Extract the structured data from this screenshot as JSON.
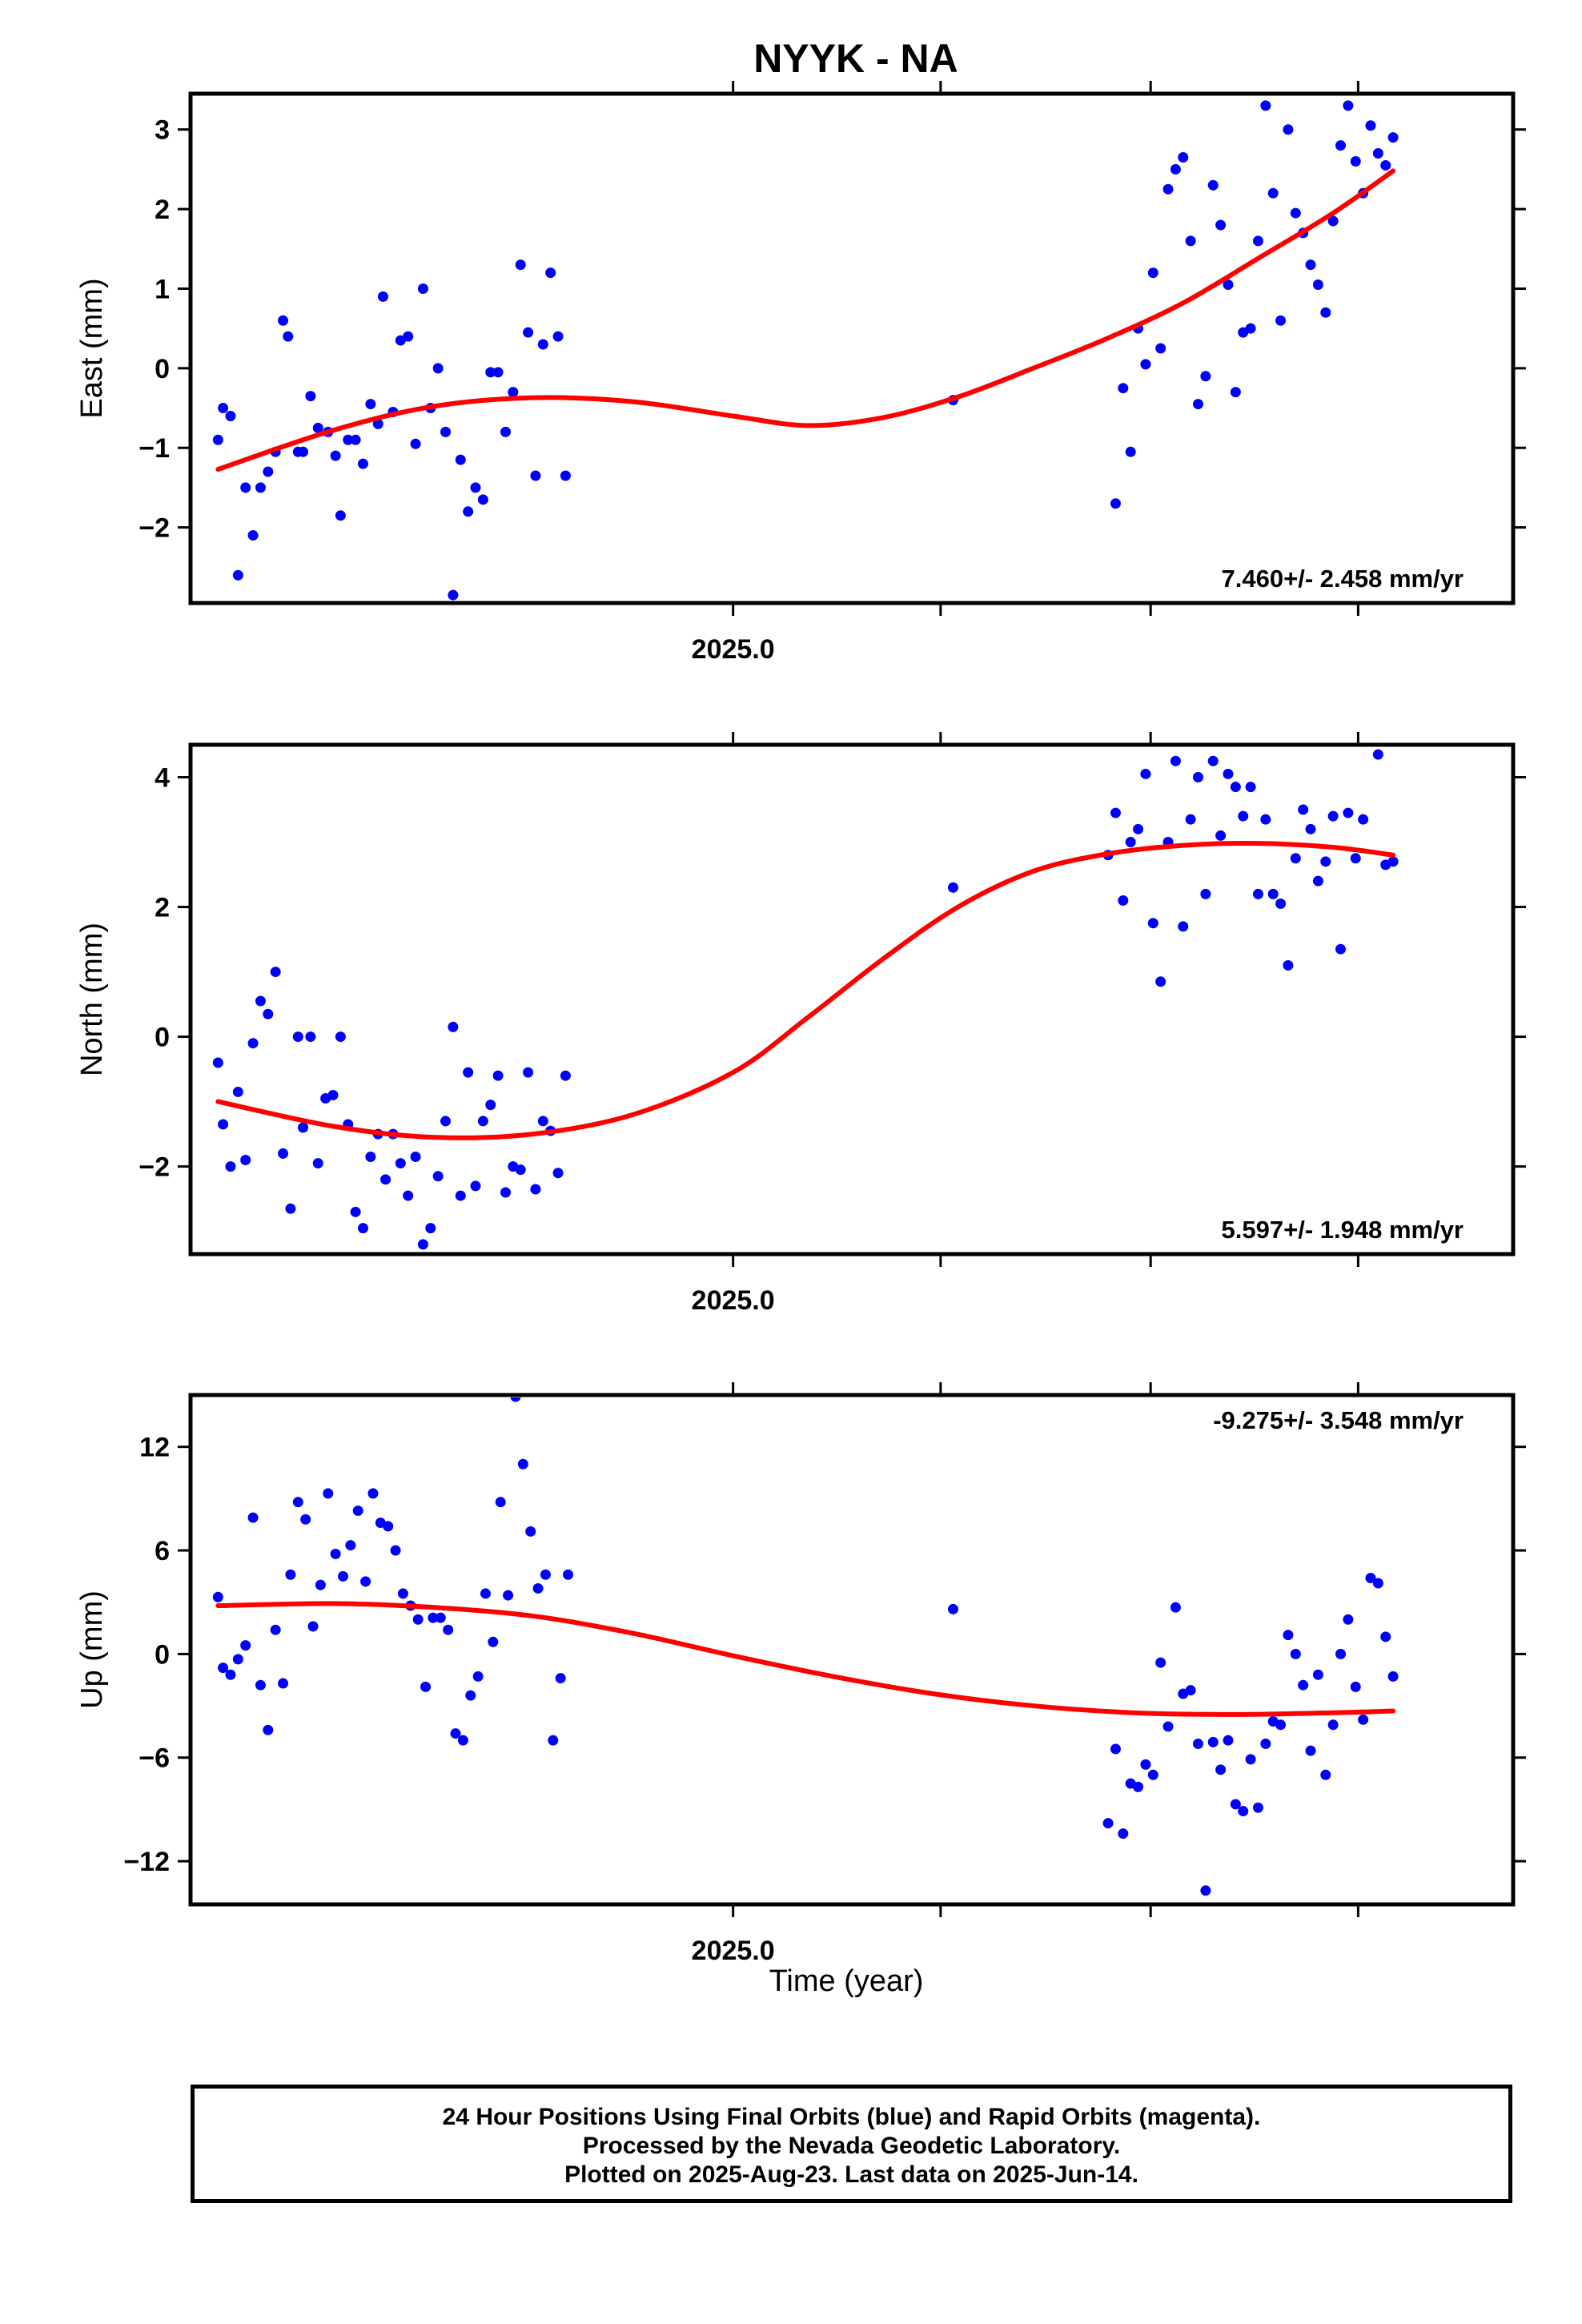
{
  "title": "NYYK - NA",
  "footer": {
    "line1": "24 Hour Positions Using Final Orbits (blue) and Rapid Orbits (magenta).",
    "line2": "Processed by the Nevada Geodetic Laboratory.",
    "line3": "Plotted on 2025-Aug-23. Last data on 2025-Jun-14."
  },
  "colors": {
    "points": "#0000ff",
    "fit": "#ff0000",
    "frame": "#000000"
  },
  "chart_data": [
    {
      "type": "scatter",
      "ylabel": "East (mm)",
      "xlabel": "",
      "xlim": [
        2024.783,
        2025.312
      ],
      "ylim": [
        -2.95,
        3.45
      ],
      "yticks": [
        -2,
        -1,
        0,
        1,
        2,
        3
      ],
      "ytick_labels": [
        "−2",
        "−1",
        "0",
        "1",
        "2",
        "3"
      ],
      "xtick_label": "2025.0",
      "rate_label": "7.460+/- 2.458 mm/yr",
      "rate_position": "bottom-right",
      "points": [
        [
          2024.794,
          -0.9
        ],
        [
          2024.796,
          -0.5
        ],
        [
          2024.799,
          -0.6
        ],
        [
          2024.802,
          -2.6
        ],
        [
          2024.805,
          -1.5
        ],
        [
          2024.808,
          -2.1
        ],
        [
          2024.811,
          -1.5
        ],
        [
          2024.814,
          -1.3
        ],
        [
          2024.817,
          -1.05
        ],
        [
          2024.82,
          0.6
        ],
        [
          2024.822,
          0.4
        ],
        [
          2024.826,
          -1.05
        ],
        [
          2024.828,
          -1.05
        ],
        [
          2024.831,
          -0.35
        ],
        [
          2024.834,
          -0.75
        ],
        [
          2024.838,
          -0.8
        ],
        [
          2024.841,
          -1.1
        ],
        [
          2024.843,
          -1.85
        ],
        [
          2024.846,
          -0.9
        ],
        [
          2024.849,
          -0.9
        ],
        [
          2024.852,
          -1.2
        ],
        [
          2024.855,
          -0.45
        ],
        [
          2024.858,
          -0.7
        ],
        [
          2024.86,
          0.9
        ],
        [
          2024.864,
          -0.55
        ],
        [
          2024.867,
          0.35
        ],
        [
          2024.87,
          0.4
        ],
        [
          2024.873,
          -0.95
        ],
        [
          2024.876,
          1.0
        ],
        [
          2024.879,
          -0.5
        ],
        [
          2024.882,
          0.0
        ],
        [
          2024.885,
          -0.8
        ],
        [
          2024.888,
          -2.85
        ],
        [
          2024.891,
          -1.15
        ],
        [
          2024.894,
          -1.8
        ],
        [
          2024.897,
          -1.5
        ],
        [
          2024.9,
          -1.65
        ],
        [
          2024.903,
          -0.05
        ],
        [
          2024.906,
          -0.05
        ],
        [
          2024.909,
          -0.8
        ],
        [
          2024.912,
          -0.3
        ],
        [
          2024.915,
          1.3
        ],
        [
          2024.918,
          0.45
        ],
        [
          2024.921,
          -1.35
        ],
        [
          2024.924,
          0.3
        ],
        [
          2024.927,
          1.2
        ],
        [
          2024.93,
          0.4
        ],
        [
          2024.933,
          -1.35
        ],
        [
          2025.088,
          -0.4
        ],
        [
          2025.153,
          -1.7
        ],
        [
          2025.156,
          -0.25
        ],
        [
          2025.159,
          -1.05
        ],
        [
          2025.162,
          0.5
        ],
        [
          2025.165,
          0.05
        ],
        [
          2025.168,
          1.2
        ],
        [
          2025.171,
          0.25
        ],
        [
          2025.174,
          2.25
        ],
        [
          2025.177,
          2.5
        ],
        [
          2025.18,
          2.65
        ],
        [
          2025.183,
          1.6
        ],
        [
          2025.186,
          -0.45
        ],
        [
          2025.189,
          -0.1
        ],
        [
          2025.192,
          2.3
        ],
        [
          2025.195,
          1.8
        ],
        [
          2025.198,
          1.05
        ],
        [
          2025.201,
          -0.3
        ],
        [
          2025.204,
          0.45
        ],
        [
          2025.207,
          0.5
        ],
        [
          2025.21,
          1.6
        ],
        [
          2025.213,
          3.3
        ],
        [
          2025.216,
          2.2
        ],
        [
          2025.219,
          0.6
        ],
        [
          2025.222,
          3.0
        ],
        [
          2025.225,
          1.95
        ],
        [
          2025.228,
          1.7
        ],
        [
          2025.231,
          1.3
        ],
        [
          2025.234,
          1.05
        ],
        [
          2025.237,
          0.7
        ],
        [
          2025.24,
          1.85
        ],
        [
          2025.243,
          2.8
        ],
        [
          2025.246,
          3.3
        ],
        [
          2025.249,
          2.6
        ],
        [
          2025.252,
          2.2
        ],
        [
          2025.255,
          3.05
        ],
        [
          2025.258,
          2.7
        ],
        [
          2025.261,
          2.55
        ],
        [
          2025.264,
          2.9
        ]
      ],
      "fit_line": [
        [
          2024.794,
          -1.27
        ],
        [
          2024.84,
          -0.78
        ],
        [
          2024.88,
          -0.48
        ],
        [
          2024.92,
          -0.37
        ],
        [
          2024.96,
          -0.42
        ],
        [
          2025.0,
          -0.6
        ],
        [
          2025.03,
          -0.72
        ],
        [
          2025.06,
          -0.62
        ],
        [
          2025.09,
          -0.36
        ],
        [
          2025.12,
          0.0
        ],
        [
          2025.15,
          0.38
        ],
        [
          2025.18,
          0.82
        ],
        [
          2025.21,
          1.38
        ],
        [
          2025.24,
          1.95
        ],
        [
          2025.264,
          2.48
        ]
      ]
    },
    {
      "type": "scatter",
      "ylabel": "North (mm)",
      "xlabel": "",
      "xlim": [
        2024.783,
        2025.312
      ],
      "ylim": [
        -3.35,
        4.5
      ],
      "yticks": [
        -2,
        0,
        2,
        4
      ],
      "ytick_labels": [
        "−2",
        "0",
        "2",
        "4"
      ],
      "xtick_label": "2025.0",
      "rate_label": "5.597+/- 1.948 mm/yr",
      "rate_position": "bottom-right",
      "points": [
        [
          2024.794,
          -0.4
        ],
        [
          2024.796,
          -1.35
        ],
        [
          2024.799,
          -2.0
        ],
        [
          2024.802,
          -0.85
        ],
        [
          2024.805,
          -1.9
        ],
        [
          2024.808,
          -0.1
        ],
        [
          2024.811,
          0.55
        ],
        [
          2024.814,
          0.35
        ],
        [
          2024.817,
          1.0
        ],
        [
          2024.82,
          -1.8
        ],
        [
          2024.823,
          -2.65
        ],
        [
          2024.826,
          0.0
        ],
        [
          2024.828,
          -1.4
        ],
        [
          2024.831,
          0.0
        ],
        [
          2024.834,
          -1.95
        ],
        [
          2024.837,
          -0.95
        ],
        [
          2024.84,
          -0.9
        ],
        [
          2024.843,
          0.0
        ],
        [
          2024.846,
          -1.35
        ],
        [
          2024.849,
          -2.7
        ],
        [
          2024.852,
          -2.95
        ],
        [
          2024.855,
          -1.85
        ],
        [
          2024.858,
          -1.5
        ],
        [
          2024.861,
          -2.2
        ],
        [
          2024.864,
          -1.5
        ],
        [
          2024.867,
          -1.95
        ],
        [
          2024.87,
          -2.45
        ],
        [
          2024.873,
          -1.85
        ],
        [
          2024.876,
          -3.2
        ],
        [
          2024.879,
          -2.95
        ],
        [
          2024.882,
          -2.15
        ],
        [
          2024.885,
          -1.3
        ],
        [
          2024.888,
          0.15
        ],
        [
          2024.891,
          -2.45
        ],
        [
          2024.894,
          -0.55
        ],
        [
          2024.897,
          -2.3
        ],
        [
          2024.9,
          -1.3
        ],
        [
          2024.903,
          -1.05
        ],
        [
          2024.906,
          -0.6
        ],
        [
          2024.909,
          -2.4
        ],
        [
          2024.912,
          -2.0
        ],
        [
          2024.915,
          -2.05
        ],
        [
          2024.918,
          -0.55
        ],
        [
          2024.921,
          -2.35
        ],
        [
          2024.924,
          -1.3
        ],
        [
          2024.927,
          -1.45
        ],
        [
          2024.93,
          -2.1
        ],
        [
          2024.933,
          -0.6
        ],
        [
          2025.088,
          2.3
        ],
        [
          2025.15,
          2.8
        ],
        [
          2025.153,
          3.45
        ],
        [
          2025.156,
          2.1
        ],
        [
          2025.159,
          3.0
        ],
        [
          2025.162,
          3.2
        ],
        [
          2025.165,
          4.05
        ],
        [
          2025.168,
          1.75
        ],
        [
          2025.171,
          0.85
        ],
        [
          2025.174,
          3.0
        ],
        [
          2025.177,
          4.25
        ],
        [
          2025.18,
          1.7
        ],
        [
          2025.183,
          3.35
        ],
        [
          2025.186,
          4.0
        ],
        [
          2025.189,
          2.2
        ],
        [
          2025.192,
          4.25
        ],
        [
          2025.195,
          3.1
        ],
        [
          2025.198,
          4.05
        ],
        [
          2025.201,
          3.85
        ],
        [
          2025.204,
          3.4
        ],
        [
          2025.207,
          3.85
        ],
        [
          2025.21,
          2.2
        ],
        [
          2025.213,
          3.35
        ],
        [
          2025.216,
          2.2
        ],
        [
          2025.219,
          2.05
        ],
        [
          2025.222,
          1.1
        ],
        [
          2025.225,
          2.75
        ],
        [
          2025.228,
          3.5
        ],
        [
          2025.231,
          3.2
        ],
        [
          2025.234,
          2.4
        ],
        [
          2025.237,
          2.7
        ],
        [
          2025.24,
          3.4
        ],
        [
          2025.243,
          1.35
        ],
        [
          2025.246,
          3.45
        ],
        [
          2025.249,
          2.75
        ],
        [
          2025.252,
          3.35
        ],
        [
          2025.258,
          4.35
        ],
        [
          2025.261,
          2.65
        ],
        [
          2025.264,
          2.7
        ]
      ],
      "fit_line": [
        [
          2024.794,
          -1.0
        ],
        [
          2024.84,
          -1.38
        ],
        [
          2024.88,
          -1.55
        ],
        [
          2024.92,
          -1.5
        ],
        [
          2024.96,
          -1.2
        ],
        [
          2025.0,
          -0.55
        ],
        [
          2025.03,
          0.3
        ],
        [
          2025.06,
          1.2
        ],
        [
          2025.09,
          2.0
        ],
        [
          2025.12,
          2.55
        ],
        [
          2025.15,
          2.82
        ],
        [
          2025.18,
          2.95
        ],
        [
          2025.21,
          2.98
        ],
        [
          2025.24,
          2.92
        ],
        [
          2025.264,
          2.8
        ]
      ]
    },
    {
      "type": "scatter",
      "ylabel": "Up (mm)",
      "xlabel": "Time (year)",
      "xlim": [
        2024.783,
        2025.312
      ],
      "ylim": [
        -14.5,
        15.0
      ],
      "yticks": [
        -12,
        -6,
        0,
        6,
        12
      ],
      "ytick_labels": [
        "−12",
        "−6",
        "0",
        "6",
        "12"
      ],
      "xtick_label": "2025.0",
      "rate_label": "-9.275+/- 3.548 mm/yr",
      "rate_position": "top-right",
      "points": [
        [
          2024.794,
          3.3
        ],
        [
          2024.796,
          -0.8
        ],
        [
          2024.799,
          -1.2
        ],
        [
          2024.802,
          -0.3
        ],
        [
          2024.805,
          0.5
        ],
        [
          2024.808,
          7.9
        ],
        [
          2024.811,
          -1.8
        ],
        [
          2024.814,
          -4.4
        ],
        [
          2024.817,
          1.4
        ],
        [
          2024.82,
          -1.7
        ],
        [
          2024.823,
          4.6
        ],
        [
          2024.826,
          8.8
        ],
        [
          2024.829,
          7.8
        ],
        [
          2024.832,
          1.6
        ],
        [
          2024.835,
          4.0
        ],
        [
          2024.838,
          9.3
        ],
        [
          2024.841,
          5.8
        ],
        [
          2024.844,
          4.5
        ],
        [
          2024.847,
          6.3
        ],
        [
          2024.85,
          8.3
        ],
        [
          2024.853,
          4.2
        ],
        [
          2024.856,
          9.3
        ],
        [
          2024.859,
          7.6
        ],
        [
          2024.862,
          7.4
        ],
        [
          2024.865,
          6.0
        ],
        [
          2024.868,
          3.5
        ],
        [
          2024.871,
          2.8
        ],
        [
          2024.874,
          2.0
        ],
        [
          2024.877,
          -1.9
        ],
        [
          2024.88,
          2.1
        ],
        [
          2024.883,
          2.1
        ],
        [
          2024.886,
          1.4
        ],
        [
          2024.889,
          -4.6
        ],
        [
          2024.892,
          -5.0
        ],
        [
          2024.895,
          -2.4
        ],
        [
          2024.898,
          -1.3
        ],
        [
          2024.901,
          3.5
        ],
        [
          2024.904,
          0.7
        ],
        [
          2024.907,
          8.8
        ],
        [
          2024.91,
          3.4
        ],
        [
          2024.913,
          14.9
        ],
        [
          2024.916,
          11.0
        ],
        [
          2024.919,
          7.1
        ],
        [
          2024.922,
          3.8
        ],
        [
          2024.925,
          4.6
        ],
        [
          2024.928,
          -5.0
        ],
        [
          2024.931,
          -1.4
        ],
        [
          2024.934,
          4.6
        ],
        [
          2025.088,
          2.6
        ],
        [
          2025.15,
          -9.8
        ],
        [
          2025.153,
          -5.5
        ],
        [
          2025.156,
          -10.4
        ],
        [
          2025.159,
          -7.5
        ],
        [
          2025.162,
          -7.7
        ],
        [
          2025.165,
          -6.4
        ],
        [
          2025.168,
          -7.0
        ],
        [
          2025.171,
          -0.5
        ],
        [
          2025.174,
          -4.2
        ],
        [
          2025.177,
          2.7
        ],
        [
          2025.18,
          -2.3
        ],
        [
          2025.183,
          -2.1
        ],
        [
          2025.186,
          -5.2
        ],
        [
          2025.189,
          -13.7
        ],
        [
          2025.192,
          -5.1
        ],
        [
          2025.195,
          -6.7
        ],
        [
          2025.198,
          -5.0
        ],
        [
          2025.201,
          -8.7
        ],
        [
          2025.204,
          -9.1
        ],
        [
          2025.207,
          -6.1
        ],
        [
          2025.21,
          -8.9
        ],
        [
          2025.213,
          -5.2
        ],
        [
          2025.216,
          -3.9
        ],
        [
          2025.219,
          -4.1
        ],
        [
          2025.222,
          1.1
        ],
        [
          2025.225,
          0.0
        ],
        [
          2025.228,
          -1.8
        ],
        [
          2025.231,
          -5.6
        ],
        [
          2025.234,
          -1.2
        ],
        [
          2025.237,
          -7.0
        ],
        [
          2025.24,
          -4.1
        ],
        [
          2025.243,
          0.0
        ],
        [
          2025.246,
          2.0
        ],
        [
          2025.249,
          -1.9
        ],
        [
          2025.252,
          -3.8
        ],
        [
          2025.255,
          4.4
        ],
        [
          2025.258,
          4.1
        ],
        [
          2025.261,
          1.0
        ],
        [
          2025.264,
          -1.3
        ]
      ],
      "fit_line": [
        [
          2024.794,
          2.8
        ],
        [
          2024.84,
          2.92
        ],
        [
          2024.88,
          2.7
        ],
        [
          2024.92,
          2.2
        ],
        [
          2024.96,
          1.2
        ],
        [
          2025.0,
          -0.1
        ],
        [
          2025.04,
          -1.3
        ],
        [
          2025.08,
          -2.3
        ],
        [
          2025.12,
          -3.0
        ],
        [
          2025.16,
          -3.4
        ],
        [
          2025.2,
          -3.5
        ],
        [
          2025.24,
          -3.4
        ],
        [
          2025.264,
          -3.3
        ]
      ]
    }
  ]
}
